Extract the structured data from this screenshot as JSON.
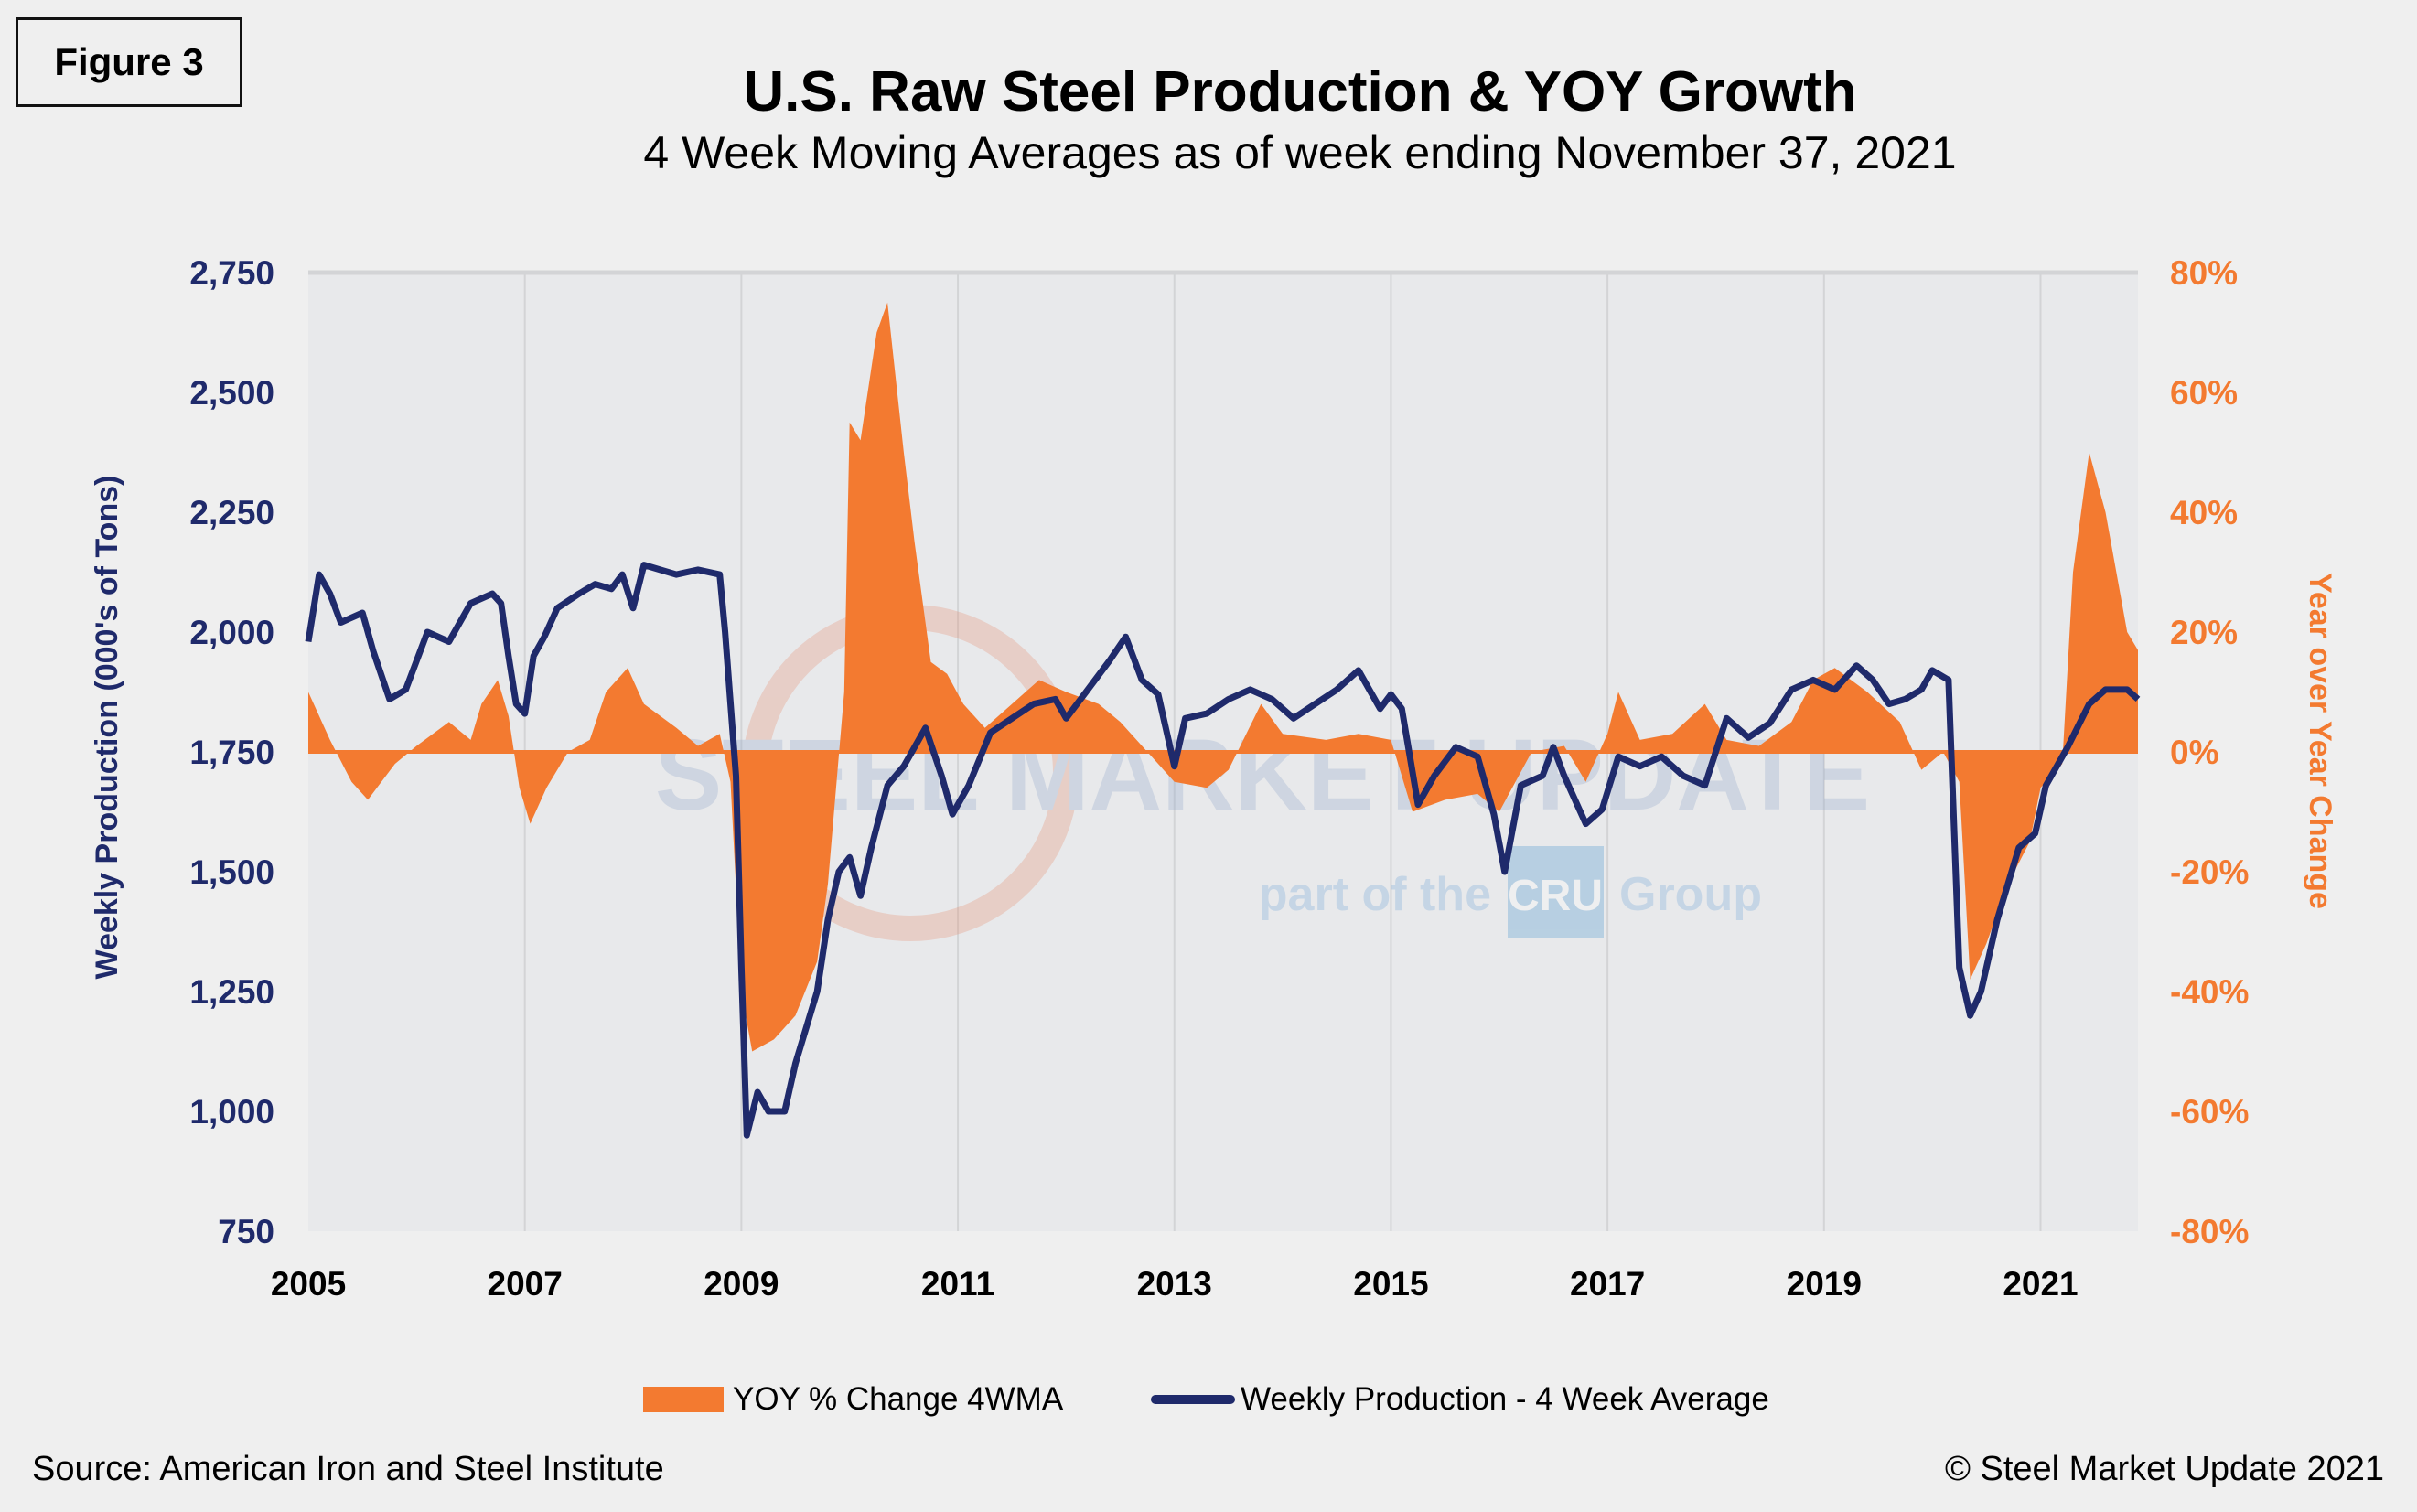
{
  "figure_label": "Figure 3",
  "watermark": {
    "brand": "STEEL MARKET UPDATE",
    "tagline_pre": "part of the",
    "tagline_logo": "CRU",
    "tagline_post": "Group"
  },
  "colors": {
    "production": "#1f2a6b",
    "yoy": "#f37a30",
    "plot_bg": "#e8e9eb",
    "grid": "#d3d4d6"
  },
  "source": "Source: American Iron and Steel Institute",
  "copyright": "© Steel Market Update 2021",
  "chart_data": {
    "type": "line",
    "title": "U.S. Raw Steel Production & YOY Growth",
    "subtitle": "4 Week Moving Averages as of week ending November 37, 2021",
    "ylabel": "Weekly Production (000's of Tons)",
    "y2label": "Year over Year Change",
    "xlim": [
      2005,
      2021.9
    ],
    "ylim": [
      750,
      2750
    ],
    "y2lim": [
      -80,
      80
    ],
    "grid": "vertical",
    "legend_position": "bottom",
    "x_ticks": [
      "2005",
      "2007",
      "2009",
      "2011",
      "2013",
      "2015",
      "2017",
      "2019",
      "2021"
    ],
    "y_ticks": [
      "750",
      "1,000",
      "1,250",
      "1,500",
      "1,750",
      "2,000",
      "2,250",
      "2,500",
      "2,750"
    ],
    "y2_ticks": [
      "-80%",
      "-60%",
      "-40%",
      "-20%",
      "0%",
      "20%",
      "40%",
      "60%",
      "80%"
    ],
    "series": [
      {
        "name": "YOY % Change 4WMA",
        "type": "area",
        "axis": "right",
        "x": [
          2005.0,
          2005.2,
          2005.4,
          2005.55,
          2005.8,
          2006.0,
          2006.3,
          2006.5,
          2006.6,
          2006.75,
          2006.85,
          2006.95,
          2007.05,
          2007.2,
          2007.4,
          2007.6,
          2007.75,
          2007.95,
          2008.1,
          2008.4,
          2008.6,
          2008.8,
          2008.9,
          2009.0,
          2009.1,
          2009.3,
          2009.5,
          2009.7,
          2009.8,
          2009.95,
          2010.0,
          2010.1,
          2010.25,
          2010.35,
          2010.5,
          2010.6,
          2010.75,
          2010.9,
          2011.05,
          2011.25,
          2011.5,
          2011.75,
          2012.0,
          2012.3,
          2012.5,
          2012.75,
          2013.0,
          2013.3,
          2013.5,
          2013.8,
          2014.0,
          2014.4,
          2014.7,
          2015.0,
          2015.2,
          2015.5,
          2015.8,
          2016.0,
          2016.3,
          2016.6,
          2016.8,
          2017.0,
          2017.1,
          2017.3,
          2017.6,
          2017.9,
          2018.1,
          2018.4,
          2018.7,
          2018.9,
          2019.1,
          2019.4,
          2019.7,
          2019.9,
          2020.1,
          2020.25,
          2020.35,
          2020.5,
          2020.7,
          2020.9,
          2021.0,
          2021.2,
          2021.3,
          2021.45,
          2021.6,
          2021.8,
          2021.9
        ],
        "values": [
          10,
          2,
          -5,
          -8,
          -2,
          1,
          5,
          2,
          8,
          12,
          6,
          -6,
          -12,
          -6,
          0,
          2,
          10,
          14,
          8,
          4,
          1,
          3,
          -5,
          -40,
          -50,
          -48,
          -44,
          -35,
          -22,
          10,
          55,
          52,
          70,
          75,
          50,
          35,
          15,
          13,
          8,
          4,
          8,
          12,
          10,
          8,
          5,
          0,
          -5,
          -6,
          -3,
          8,
          3,
          2,
          3,
          2,
          -10,
          -8,
          -7,
          -10,
          0,
          1,
          -5,
          3,
          10,
          2,
          3,
          8,
          2,
          1,
          5,
          12,
          14,
          10,
          5,
          -3,
          0,
          -5,
          -38,
          -32,
          -22,
          -15,
          -6,
          -2,
          30,
          50,
          40,
          20,
          17
        ]
      },
      {
        "name": "Weekly Production - 4 Week Average",
        "type": "line",
        "axis": "left",
        "x": [
          2005.0,
          2005.1,
          2005.2,
          2005.3,
          2005.5,
          2005.6,
          2005.75,
          2005.9,
          2006.1,
          2006.3,
          2006.5,
          2006.7,
          2006.78,
          2006.85,
          2006.92,
          2007.0,
          2007.08,
          2007.18,
          2007.3,
          2007.5,
          2007.65,
          2007.8,
          2007.9,
          2008.0,
          2008.1,
          2008.4,
          2008.6,
          2008.8,
          2008.85,
          2008.95,
          2009.0,
          2009.05,
          2009.15,
          2009.25,
          2009.4,
          2009.5,
          2009.7,
          2009.8,
          2009.9,
          2010.0,
          2010.1,
          2010.2,
          2010.35,
          2010.5,
          2010.7,
          2010.85,
          2010.95,
          2011.1,
          2011.3,
          2011.5,
          2011.7,
          2011.9,
          2012.0,
          2012.2,
          2012.4,
          2012.55,
          2012.7,
          2012.85,
          2013.0,
          2013.1,
          2013.3,
          2013.5,
          2013.7,
          2013.9,
          2014.1,
          2014.3,
          2014.5,
          2014.7,
          2014.9,
          2015.0,
          2015.1,
          2015.25,
          2015.4,
          2015.6,
          2015.8,
          2015.95,
          2016.05,
          2016.2,
          2016.4,
          2016.5,
          2016.6,
          2016.8,
          2016.95,
          2017.1,
          2017.3,
          2017.5,
          2017.7,
          2017.9,
          2018.1,
          2018.3,
          2018.5,
          2018.7,
          2018.9,
          2019.1,
          2019.3,
          2019.45,
          2019.6,
          2019.75,
          2019.9,
          2020.0,
          2020.15,
          2020.25,
          2020.35,
          2020.45,
          2020.6,
          2020.8,
          2020.95,
          2021.05,
          2021.25,
          2021.45,
          2021.6,
          2021.8,
          2021.9
        ],
        "values": [
          1980,
          2120,
          2080,
          2020,
          2040,
          1960,
          1860,
          1880,
          2000,
          1980,
          2060,
          2080,
          2060,
          1950,
          1850,
          1830,
          1950,
          1990,
          2050,
          2080,
          2100,
          2090,
          2120,
          2050,
          2140,
          2120,
          2130,
          2120,
          2000,
          1700,
          1300,
          950,
          1040,
          1000,
          1000,
          1100,
          1250,
          1400,
          1500,
          1530,
          1450,
          1550,
          1680,
          1720,
          1800,
          1700,
          1620,
          1680,
          1790,
          1820,
          1850,
          1860,
          1820,
          1880,
          1940,
          1990,
          1900,
          1870,
          1720,
          1820,
          1830,
          1860,
          1880,
          1860,
          1820,
          1850,
          1880,
          1920,
          1840,
          1870,
          1840,
          1640,
          1700,
          1760,
          1740,
          1620,
          1500,
          1680,
          1700,
          1760,
          1700,
          1600,
          1630,
          1740,
          1720,
          1740,
          1700,
          1680,
          1820,
          1780,
          1810,
          1880,
          1900,
          1880,
          1930,
          1900,
          1850,
          1860,
          1880,
          1920,
          1900,
          1300,
          1200,
          1250,
          1400,
          1550,
          1580,
          1680,
          1760,
          1850,
          1880,
          1880,
          1860
        ]
      }
    ]
  }
}
